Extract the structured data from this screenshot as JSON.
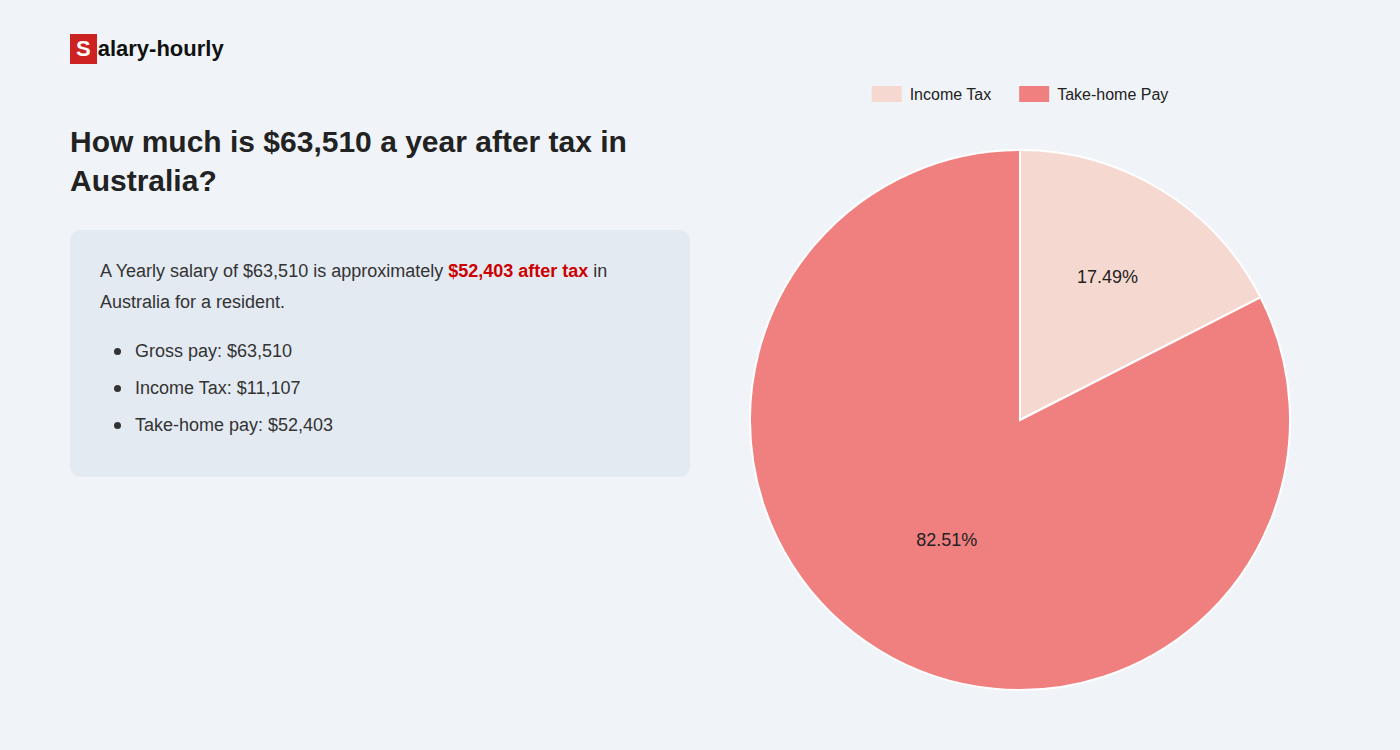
{
  "chart_data": {
    "type": "pie",
    "title": "How much is $63,510 a year after tax in Australia?",
    "categories": [
      "Income Tax",
      "Take-home Pay"
    ],
    "values": [
      17.49,
      82.51
    ],
    "value_labels": [
      "17.49%",
      "82.51%"
    ],
    "colors": [
      "#f5d9d0",
      "#f08080"
    ],
    "data_labels": true,
    "legend": "top",
    "annotations": [
      {
        "text": "S",
        "color": "#cc2222"
      },
      {
        "text": "alary-hourly"
      },
      {
        "text": "A Yearly salary of $63,510 is approximately "
      },
      {
        "text": "$52,403 after tax",
        "color": "#cc0000"
      },
      {
        "text": " in"
      },
      {
        "text": "Australia for a resident."
      },
      {
        "text": "Gross pay: $63,510"
      },
      {
        "text": "Income Tax: $11,107"
      },
      {
        "text": "Take-home pay: $52,403"
      }
    ]
  }
}
